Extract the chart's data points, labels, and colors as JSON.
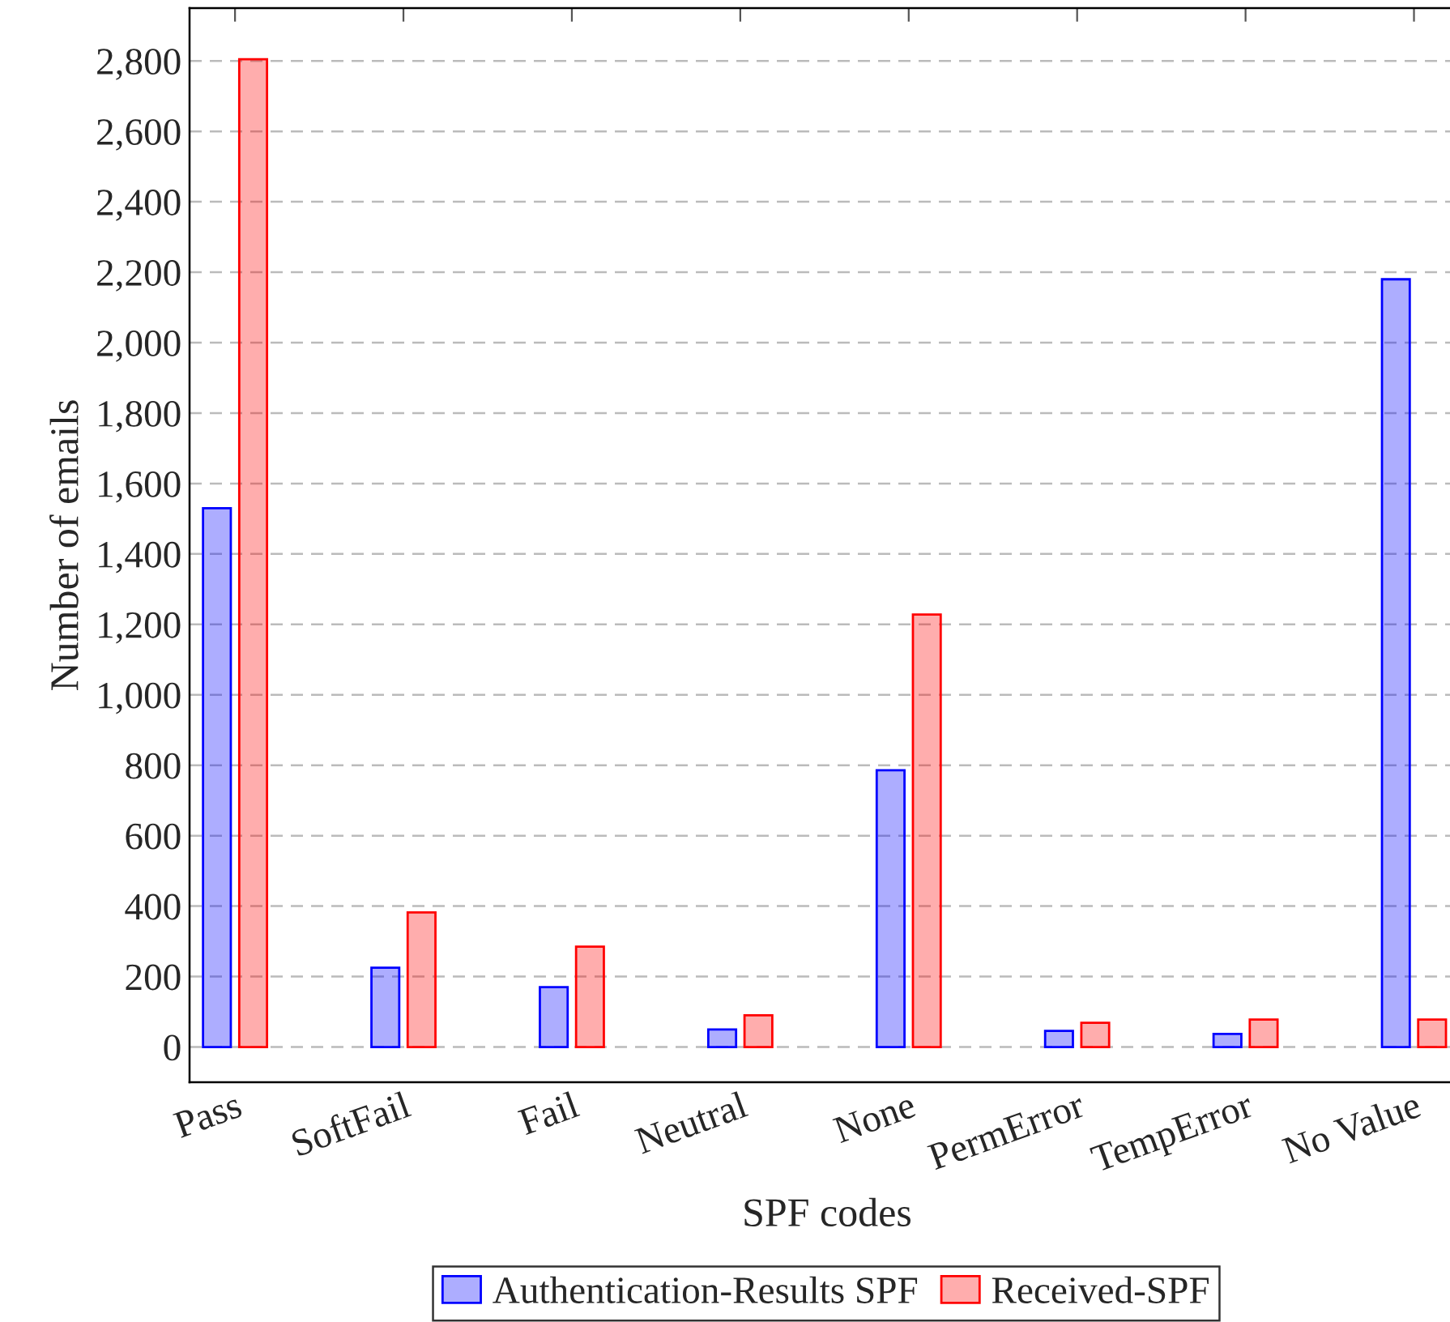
{
  "chart_data": {
    "type": "bar",
    "xlabel": "SPF codes",
    "ylabel": "Number of emails",
    "categories": [
      "Pass",
      "SoftFail",
      "Fail",
      "Neutral",
      "None",
      "PermError",
      "TempError",
      "No Value"
    ],
    "series": [
      {
        "name": "Authentication-Results SPF",
        "color": "#0000ff",
        "values": [
          1530,
          225,
          170,
          50,
          786,
          46,
          37,
          2180
        ]
      },
      {
        "name": "Received-SPF",
        "color": "#ff0000",
        "values": [
          2805,
          382,
          285,
          90,
          1228,
          69,
          78,
          78
        ]
      }
    ],
    "ylim": [
      -100,
      2950
    ],
    "yticks": [
      0,
      {
        "value": 200,
        "label": "200"
      },
      {
        "value": 400,
        "label": "400"
      },
      {
        "value": 600,
        "label": "600"
      },
      {
        "value": 800,
        "label": "800"
      },
      {
        "value": 1000,
        "label": "1,000"
      },
      {
        "value": 1200,
        "label": "1,200"
      },
      {
        "value": 1400,
        "label": "1,400"
      },
      {
        "value": 1600,
        "label": "1,600"
      },
      {
        "value": 1800,
        "label": "1,800"
      },
      {
        "value": 2000,
        "label": "2,000"
      },
      {
        "value": 2200,
        "label": "2,200"
      },
      {
        "value": 2400,
        "label": "2,400"
      },
      {
        "value": 2600,
        "label": "2,600"
      },
      {
        "value": 2800,
        "label": "2,800"
      }
    ],
    "grid": "y",
    "legend": "bottom"
  }
}
